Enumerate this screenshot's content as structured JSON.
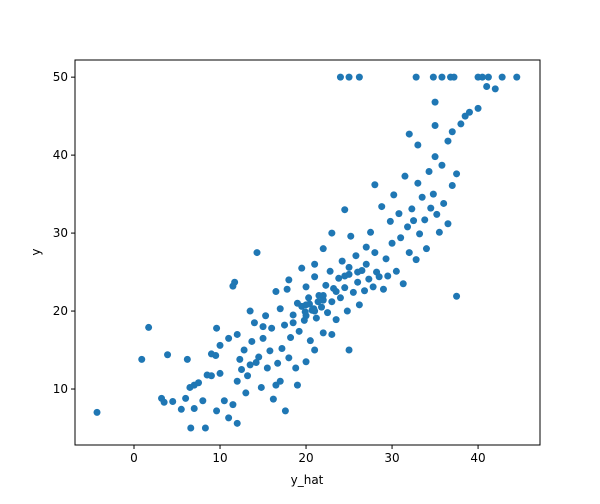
{
  "chart_data": {
    "type": "scatter",
    "x_label": "y_hat",
    "y_label": "y",
    "color": "#1f77b4",
    "xlim": [
      -6.86,
      47.2
    ],
    "ylim": [
      2.82,
      52.2
    ],
    "xticks": [
      0,
      10,
      20,
      30,
      40
    ],
    "yticks": [
      10,
      20,
      30,
      40,
      50
    ],
    "grid": false,
    "x": [
      -4.3,
      1.7,
      0.9,
      24,
      25,
      26.2,
      32.8,
      34.8,
      35.8,
      36.8,
      37.2,
      40,
      40.5,
      41.2,
      42.8,
      44.5,
      41,
      42,
      37.5,
      14.3,
      11.5,
      11.7,
      25,
      17.6,
      12,
      6.6,
      8.3,
      9.6,
      5.5,
      3.2,
      3.5,
      4.5,
      3.9,
      6.2,
      9.6,
      32,
      35,
      37,
      38,
      38.5,
      39,
      40,
      36.5,
      35,
      33,
      7,
      6.5,
      7.5,
      8,
      6,
      7,
      8.5,
      9,
      9,
      9.5,
      10,
      10.5,
      11,
      11.5,
      12,
      12.3,
      12.5,
      12.8,
      13,
      13.2,
      13.5,
      13.7,
      14,
      14.2,
      14.5,
      14.8,
      15,
      15.3,
      15.5,
      15.8,
      16,
      16.2,
      16.5,
      16.7,
      17,
      17.2,
      17.5,
      17.8,
      18,
      18.2,
      18.5,
      18.8,
      19,
      19.2,
      19.5,
      19.8,
      20,
      20,
      20.3,
      20.5,
      20.7,
      21,
      21.2,
      21.5,
      21.8,
      22,
      22,
      22.3,
      22.5,
      22.8,
      23,
      23.2,
      23.5,
      23.8,
      24,
      24.2,
      24.5,
      24.8,
      25,
      25.2,
      25.5,
      25.8,
      26,
      26.2,
      26.5,
      26.8,
      27,
      27.3,
      27.5,
      27.8,
      28,
      28.2,
      28.5,
      28.8,
      29,
      29.3,
      29.5,
      29.8,
      30,
      30.2,
      30.5,
      30.8,
      31,
      31.3,
      31.5,
      31.8,
      32,
      32.3,
      32.5,
      32.8,
      33,
      33.2,
      33.5,
      33.8,
      34,
      34.3,
      34.5,
      34.8,
      35,
      35.2,
      35.5,
      35.8,
      36,
      36.5,
      37,
      37.5,
      13.5,
      16.5,
      18,
      19.5,
      21,
      22,
      23,
      24.5,
      17,
      19,
      20,
      21,
      23,
      10,
      11,
      12,
      15,
      20.4,
      20.9,
      21.4,
      19.9,
      21,
      22,
      20,
      18.5,
      23.5,
      24.5,
      26,
      27,
      25,
      28
    ],
    "values": [
      7,
      17.9,
      13.8,
      50,
      50,
      50,
      50,
      50,
      50,
      50,
      50,
      50,
      50,
      50,
      50,
      50,
      48.8,
      48.5,
      21.9,
      27.5,
      23.2,
      23.7,
      15,
      7.2,
      5.6,
      5,
      5,
      7.2,
      7.4,
      8.8,
      8.3,
      8.4,
      14.4,
      13.8,
      17.8,
      42.7,
      43.8,
      43,
      44,
      45,
      45.5,
      46,
      41.8,
      46.8,
      41.3,
      10.5,
      10.2,
      10.8,
      8.5,
      8.8,
      7.5,
      11.8,
      11.7,
      14.5,
      14.3,
      12,
      8.5,
      6.3,
      8,
      11,
      13.8,
      12.5,
      15,
      9.5,
      11.7,
      13.1,
      16.1,
      18.5,
      13.4,
      14.1,
      10.2,
      16.5,
      19.4,
      12.7,
      14.9,
      17.8,
      8.7,
      10.5,
      13.3,
      20.3,
      15.2,
      18.2,
      22.8,
      14,
      16.6,
      19.5,
      12.7,
      21,
      17.4,
      20.6,
      18.8,
      23.1,
      19.4,
      21.7,
      16.2,
      20.1,
      24.4,
      19.1,
      22,
      20.5,
      17.2,
      21.4,
      23.3,
      19.8,
      25.1,
      21.2,
      22.9,
      18.9,
      24.2,
      21.7,
      26.4,
      23,
      20,
      24.7,
      29.6,
      22.4,
      27.1,
      23.7,
      20.8,
      25.2,
      22.6,
      28.2,
      24.1,
      30.1,
      23.1,
      36.2,
      25,
      24.4,
      33.4,
      22.8,
      26.7,
      24.5,
      31.5,
      28.7,
      34.9,
      25.1,
      32.5,
      29.4,
      23.5,
      37.3,
      30.8,
      27.5,
      33.1,
      31.6,
      26.6,
      36.4,
      29.9,
      34.6,
      31.7,
      28,
      37.9,
      33.2,
      35,
      39.8,
      32.4,
      30.1,
      38.7,
      33.8,
      31.2,
      36.1,
      37.6,
      20,
      22.5,
      24,
      25.5,
      26,
      28,
      30,
      33,
      11,
      10.5,
      13.5,
      15,
      17,
      15.6,
      16.5,
      17,
      18,
      20.9,
      20.3,
      21.2,
      19.9,
      20,
      22,
      20.8,
      18.5,
      22.5,
      24.5,
      25,
      26,
      25.6,
      27.5
    ]
  }
}
